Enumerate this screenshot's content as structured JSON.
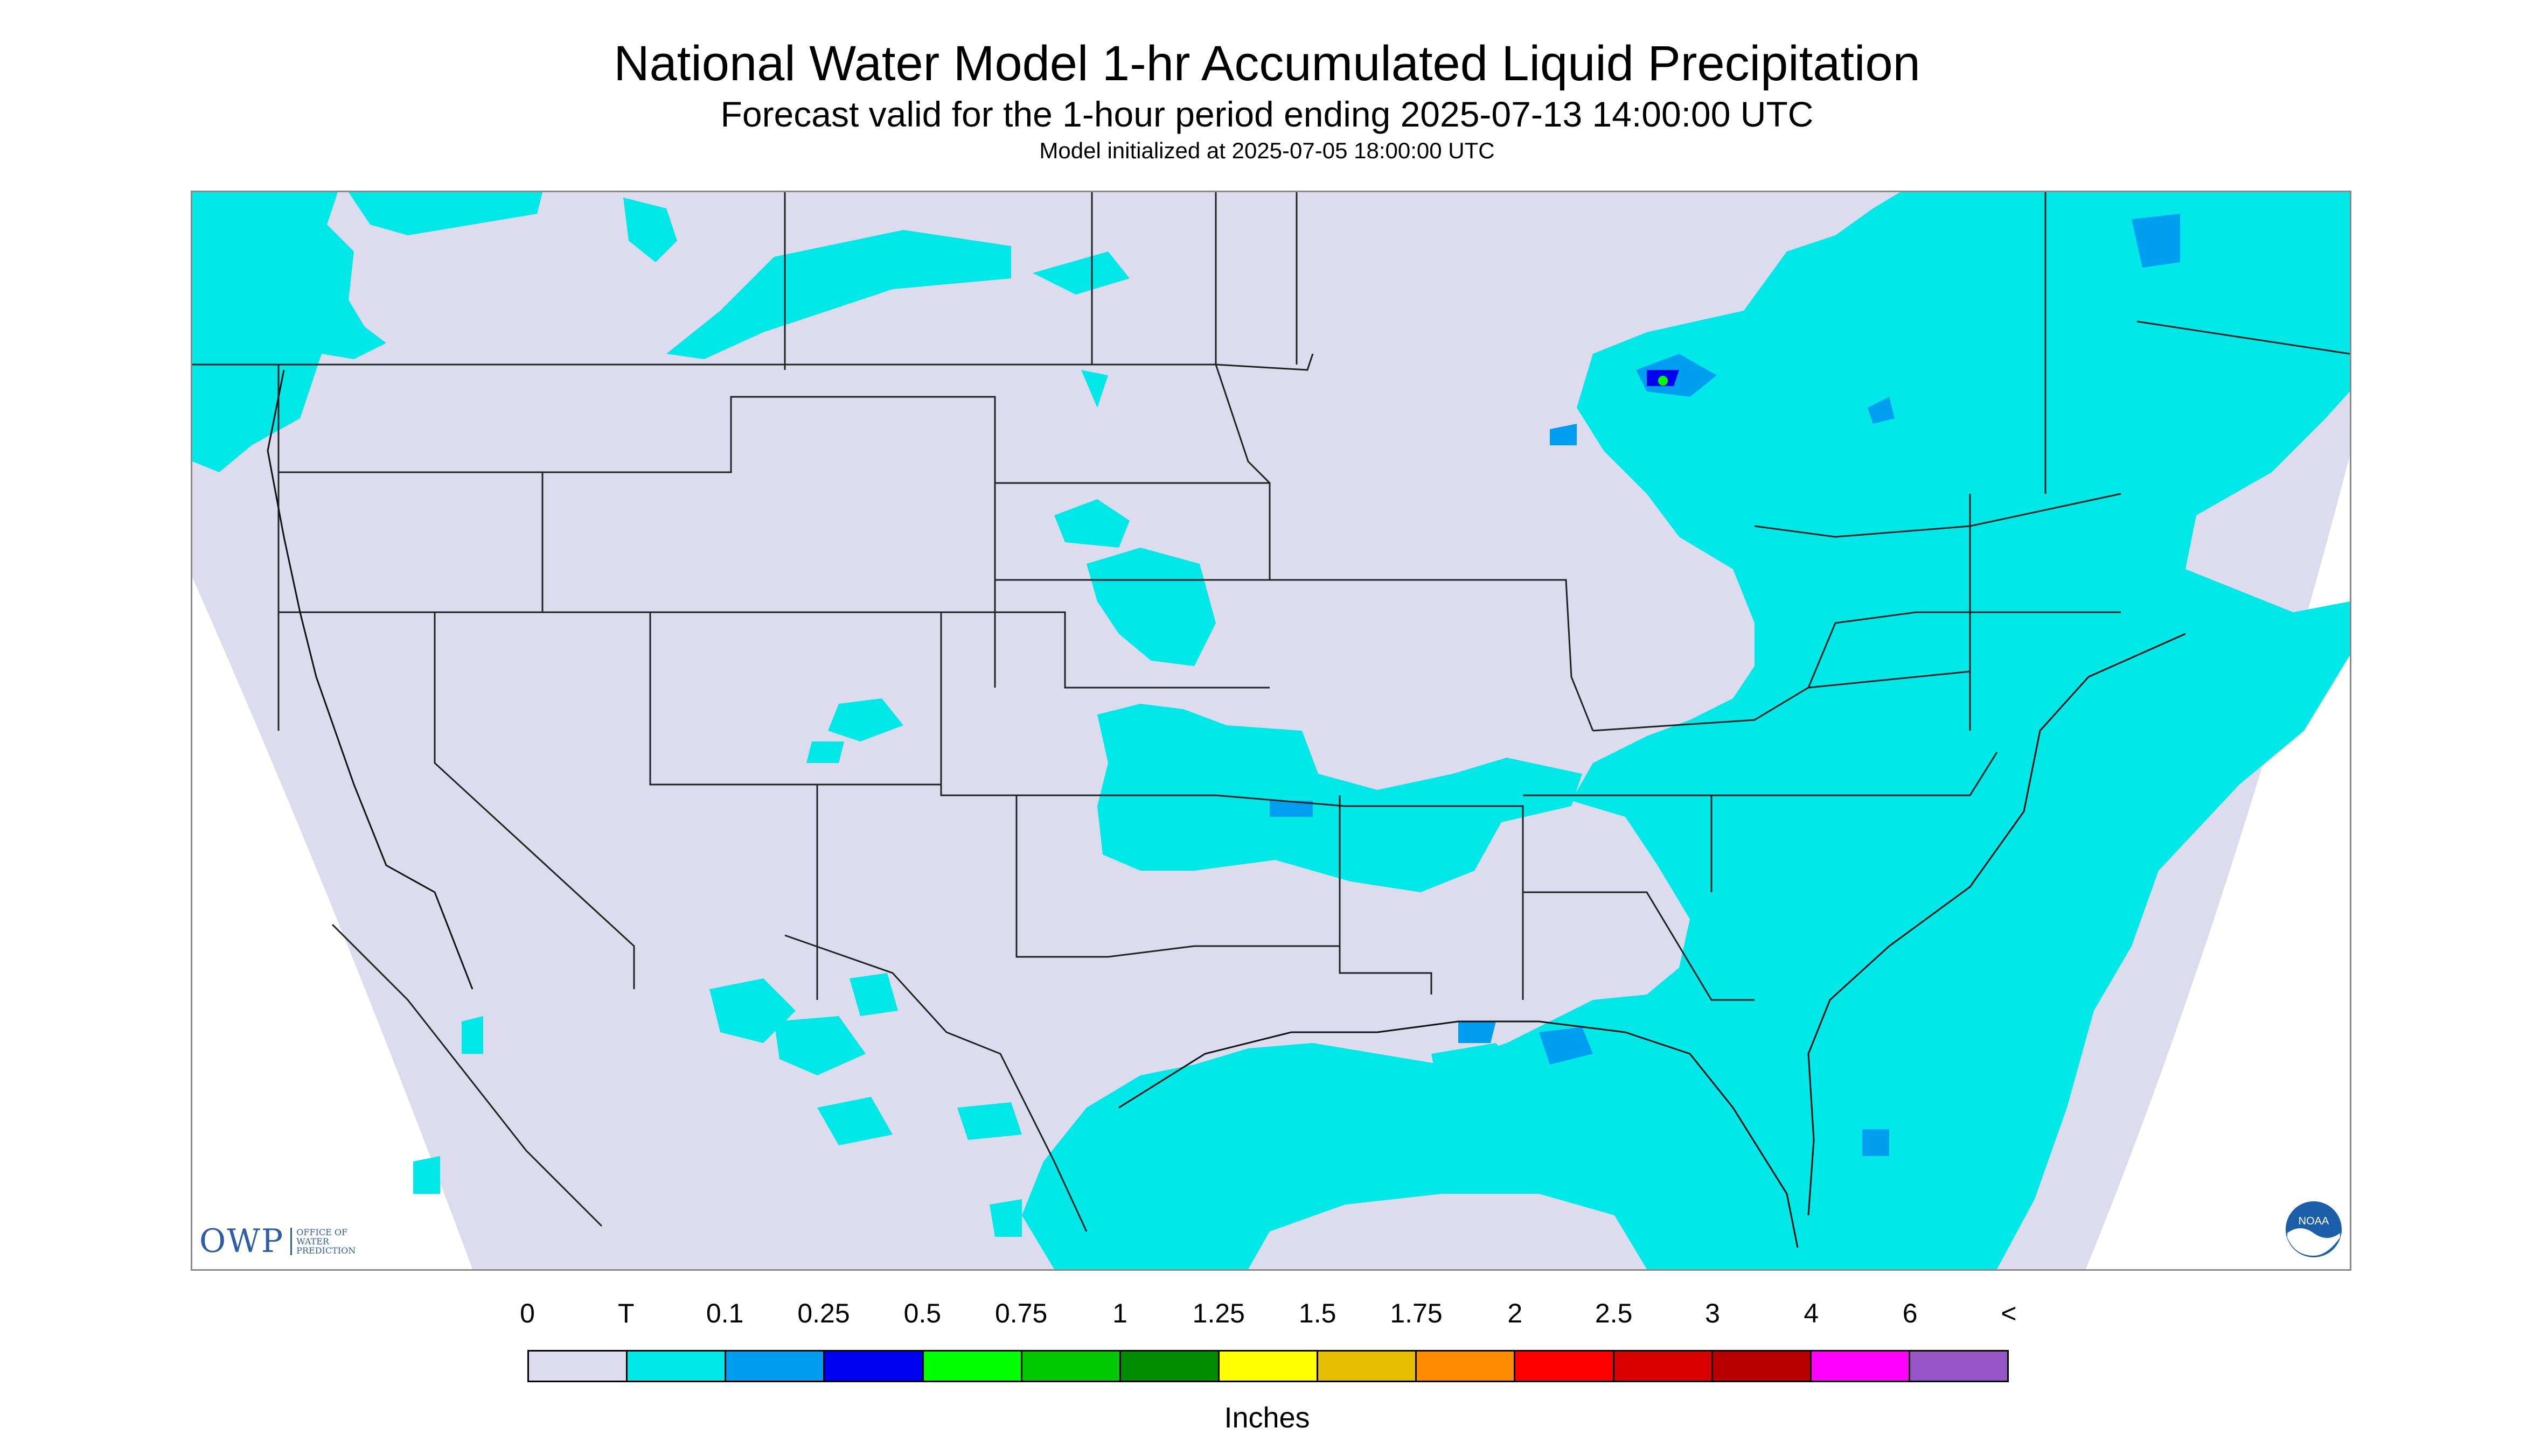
{
  "title": "National Water Model 1-hr Accumulated Liquid Precipitation",
  "subtitle": "Forecast valid for the 1-hour period ending 2025-07-13 14:00:00 UTC",
  "init_line": "Model initialized at 2025-07-05 18:00:00 UTC",
  "logos": {
    "owp_main": "OWP",
    "owp_sub": "OFFICE OF WATER PREDICTION",
    "noaa": "NOAA"
  },
  "legend": {
    "labels": [
      "0",
      "T",
      "0.1",
      "0.25",
      "0.5",
      "0.75",
      "1",
      "1.25",
      "1.5",
      "1.75",
      "2",
      "2.5",
      "3",
      "4",
      "6",
      "<"
    ],
    "colors": [
      "#dcdcee",
      "#00e8e8",
      "#009ef0",
      "#0000f0",
      "#00ff00",
      "#00c800",
      "#008c00",
      "#ffff00",
      "#e6be00",
      "#ff8c00",
      "#ff0000",
      "#d90000",
      "#b80000",
      "#ff00ff",
      "#9855c8"
    ],
    "units": "Inches"
  },
  "map_colors": {
    "background": "#dcdcee",
    "light_precip": "#00e8e8",
    "moderate_precip": "#009ef0",
    "borders": "#000000"
  }
}
